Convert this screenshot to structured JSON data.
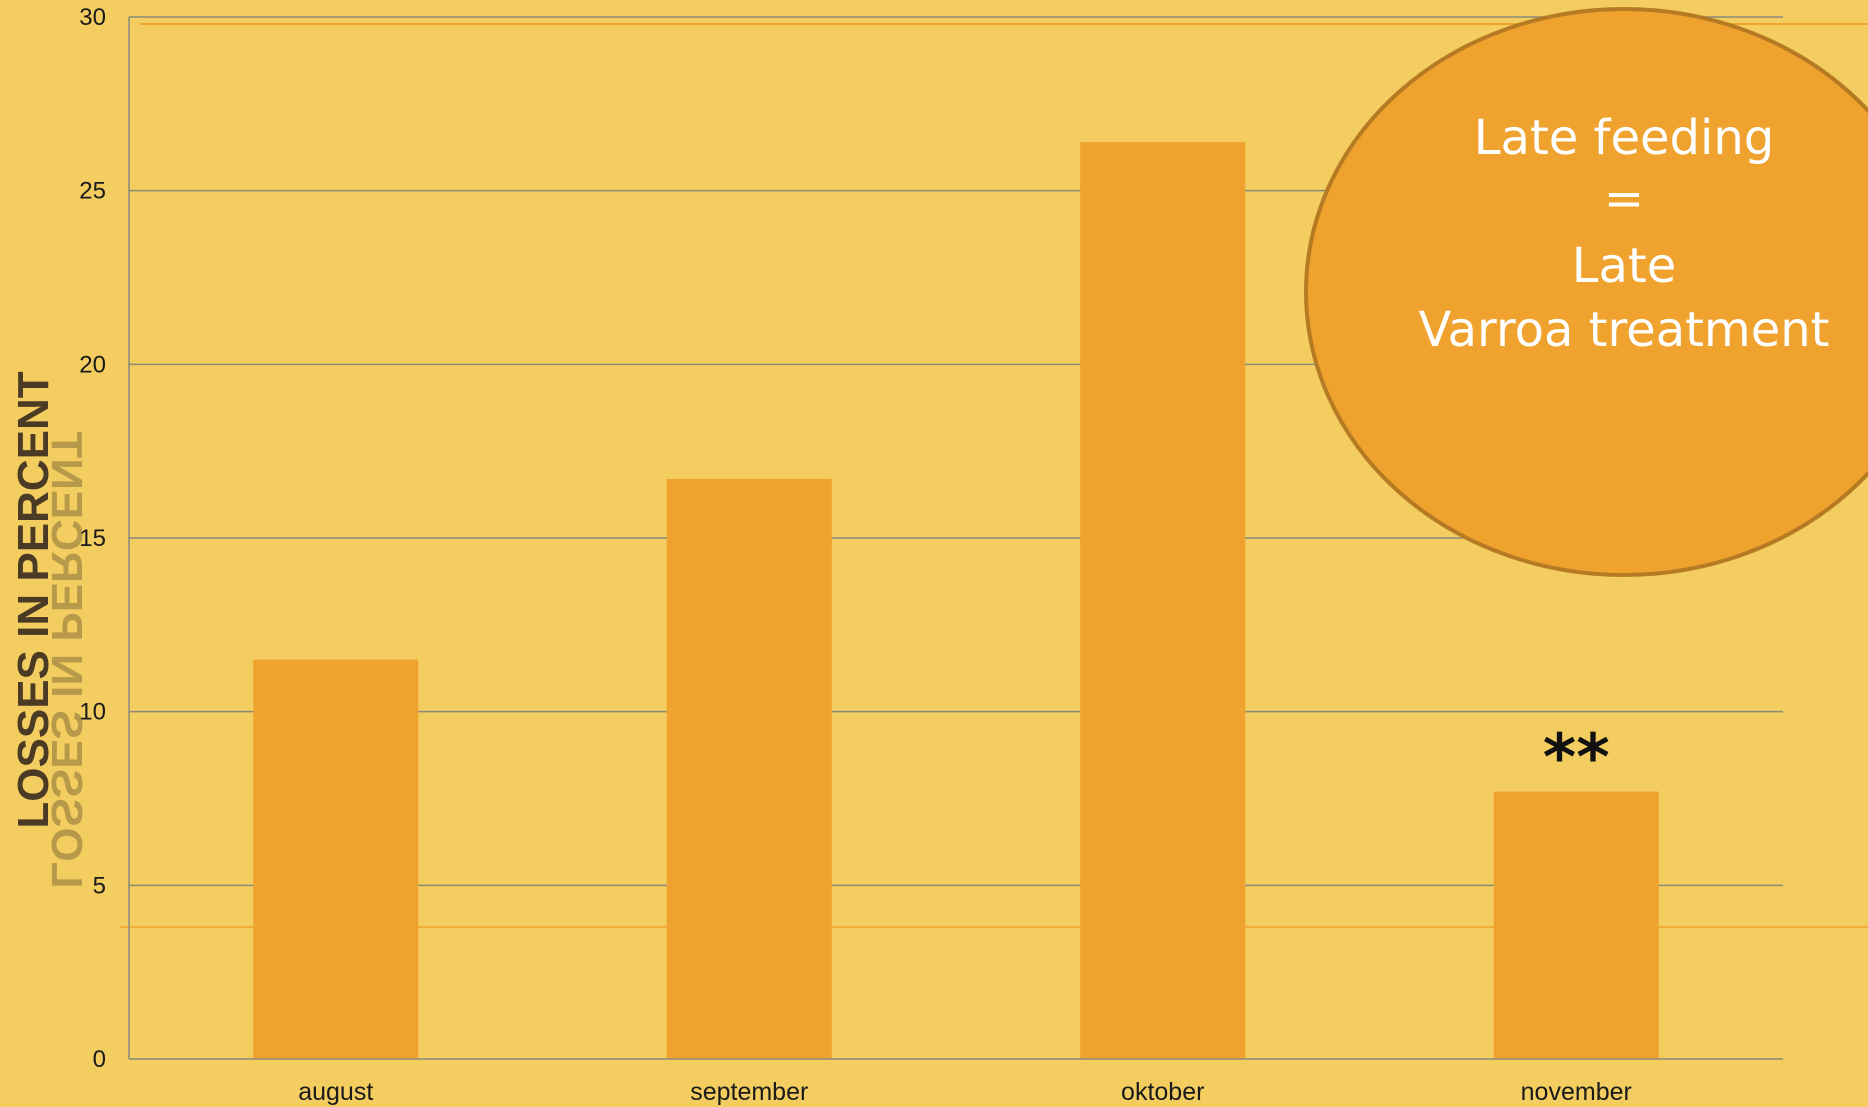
{
  "chart_data": {
    "type": "bar",
    "categories": [
      "august",
      "september",
      "oktober",
      "november"
    ],
    "values": [
      11.5,
      16.7,
      26.4,
      7.7
    ],
    "title": "",
    "xlabel": "",
    "ylabel": "LOSSES IN PERCENT",
    "ylim": [
      0,
      30
    ],
    "yticks": [
      0,
      5,
      10,
      15,
      20,
      25,
      30
    ],
    "grid": true,
    "legend": "none",
    "annotations": [
      {
        "category": "november",
        "text": "**"
      }
    ],
    "callout": {
      "lines": [
        "Late feeding",
        "=",
        "Late",
        "Varroa treatment"
      ]
    }
  },
  "colors": {
    "background": "#f3cd5f",
    "bar": "#efa22e",
    "gridline": "#8a8a7a",
    "callout_fill": "#efa22e",
    "callout_stroke": "#b57a22",
    "callout_text": "#ffffff",
    "accent_line": "#ec9a22"
  }
}
